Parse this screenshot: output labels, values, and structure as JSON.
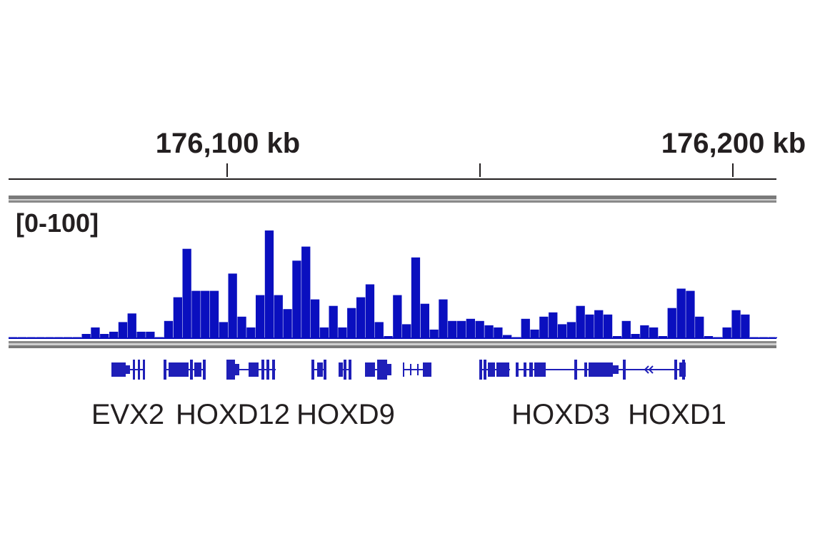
{
  "colors": {
    "track": "#0a0fbf",
    "gene": "#1f1fb8",
    "text": "#231f20",
    "ruler": "#231f20",
    "divider_outer": "#7a7a7a",
    "divider_inner": "#cfcfcf"
  },
  "ruler": {
    "ticks": [
      {
        "position_kb": 176100,
        "label": "176,100 kb"
      },
      {
        "position_kb": 176150,
        "label": ""
      },
      {
        "position_kb": 176200,
        "label": "176,200 kb"
      }
    ]
  },
  "track": {
    "range_label": "[0-100]",
    "ymax": 100
  },
  "chart_data": {
    "type": "area",
    "title": "",
    "xlabel": "",
    "ylabel": "",
    "xlim_kb": [
      176057,
      176208
    ],
    "ylim": [
      0,
      100
    ],
    "x_kb": [
      176057.0,
      176058.8,
      176060.6,
      176062.4,
      176064.2,
      176066.0,
      176067.8,
      176069.6,
      176071.4,
      176073.2,
      176075.0,
      176076.8,
      176078.6,
      176080.4,
      176082.2,
      176084.0,
      176085.8,
      176087.6,
      176089.4,
      176091.2,
      176093.0,
      176094.8,
      176096.6,
      176098.4,
      176100.2,
      176102.0,
      176103.8,
      176105.6,
      176107.4,
      176109.2,
      176111.0,
      176112.8,
      176114.6,
      176116.4,
      176118.2,
      176120.0,
      176121.8,
      176123.6,
      176125.4,
      176127.2,
      176129.0,
      176130.8,
      176132.6,
      176134.4,
      176136.2,
      176138.0,
      176139.8,
      176141.6,
      176143.4,
      176145.2,
      176147.0,
      176148.8,
      176150.6,
      176152.4,
      176154.2,
      176156.0,
      176157.8,
      176159.6,
      176161.4,
      176163.2,
      176165.0,
      176166.8,
      176168.6,
      176170.4,
      176172.2,
      176174.0,
      176175.8,
      176177.6,
      176179.4,
      176181.2,
      176183.0,
      176184.8,
      176186.6,
      176188.4,
      176190.2,
      176192.0,
      176193.8,
      176195.6,
      176197.4,
      176199.2,
      176201.0,
      176202.8,
      176204.6,
      176206.4,
      176208.0
    ],
    "values": [
      1,
      1,
      1,
      1,
      1,
      1,
      1,
      1,
      4,
      10,
      4,
      6,
      15,
      23,
      6,
      6,
      1,
      16,
      38,
      83,
      44,
      44,
      44,
      15,
      60,
      20,
      10,
      40,
      100,
      40,
      27,
      72,
      85,
      36,
      10,
      30,
      10,
      28,
      38,
      50,
      15,
      2,
      40,
      13,
      75,
      32,
      8,
      36,
      16,
      16,
      18,
      16,
      12,
      10,
      3,
      1,
      18,
      8,
      20,
      24,
      13,
      15,
      30,
      22,
      26,
      22,
      2,
      16,
      4,
      12,
      10,
      2,
      28,
      46,
      44,
      20,
      2,
      1,
      10,
      26,
      22,
      1,
      1,
      1,
      1
    ]
  },
  "genes": {
    "labels": [
      "EVX2",
      "HOXD12",
      "HOXD9",
      "HOXD3",
      "HOXD1"
    ]
  }
}
